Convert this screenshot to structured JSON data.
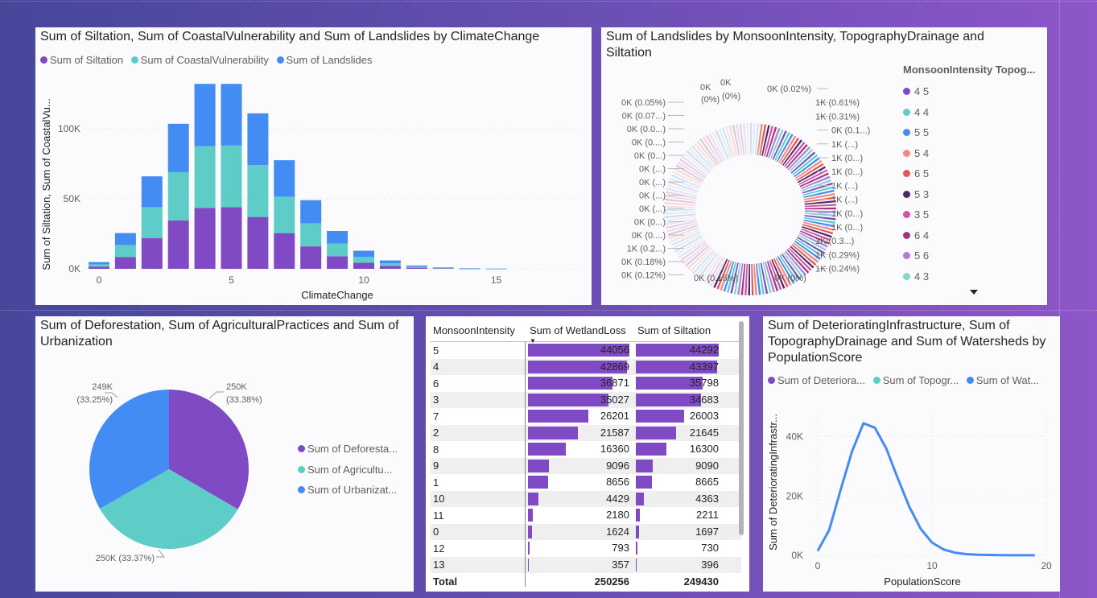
{
  "colors": {
    "purple": "#7f4ac4",
    "teal": "#5ecdc7",
    "blue": "#438cf3",
    "salmon": "#f08a7a",
    "red": "#e55756",
    "darkpurple": "#4a2b72",
    "pink": "#d4559f",
    "plum": "#9d3a7d",
    "lavender": "#b07be8",
    "mint": "#82d8c0"
  },
  "chart1": {
    "title": "Sum of Siltation, Sum of CoastalVulnerability and Sum of Landslides by ClimateChange",
    "legend": [
      "Sum of Siltation",
      "Sum of CoastalVulnerability",
      "Sum of Landslides"
    ],
    "ylabel": "Sum of Siltation, Sum of CoastalVu...",
    "xlabel": "ClimateChange",
    "yticks": [
      "0K",
      "50K",
      "100K"
    ],
    "xticks": [
      "0",
      "5",
      "10",
      "15"
    ]
  },
  "chart2": {
    "title": "Sum of Landslides by MonsoonIntensity, TopographyDrainage and Siltation",
    "legend_title": "MonsoonIntensity Topog...",
    "legend": [
      "4 5",
      "4 4",
      "5 5",
      "5 4",
      "6 5",
      "5 3",
      "3 5",
      "6 4",
      "5 6",
      "4 3"
    ],
    "left_labels": [
      "0K (0.05%)",
      "0K (0.07...)",
      "0K (0.0...)",
      "0K (0....)",
      "0K (0...)",
      "0K (...)",
      "0K (...)",
      "0K (...)",
      "0K (...)",
      "0K (0...)",
      "0K (0....)",
      "1K (0.2...)",
      "0K (0.18%)",
      "0K (0.12%)"
    ],
    "right_labels": [
      "0K (0.02%)",
      "1K (0.61%)",
      "1K (0.31%)",
      "0K (0.1...)",
      "1K (...)",
      "1K (0...)",
      "1K (0...)",
      "1K (...)",
      "1K (...)",
      "1K (0...)",
      "1K (0...)",
      "1K (0.3...)",
      "1K (0.29%)",
      "1K (0.24%)"
    ],
    "top_labels": [
      "0K",
      "0K",
      "(0%)",
      "(0%)"
    ],
    "bottom_labels": [
      "0K (0.15%)",
      "0K (0%)"
    ]
  },
  "chart3": {
    "title": "Sum of Deforestation, Sum of AgriculturalPractices and Sum of Urbanization",
    "legend": [
      "Sum of Deforesta...",
      "Sum of Agricultu...",
      "Sum of Urbanizat..."
    ],
    "labels": [
      "250K",
      "(33.38%)",
      "249K",
      "(33.25%)",
      "250K (33.37%)"
    ]
  },
  "table": {
    "headers": [
      "MonsoonIntensity",
      "Sum of WetlandLoss",
      "Sum of Siltation"
    ],
    "rows": [
      [
        "5",
        "44056",
        "44292"
      ],
      [
        "4",
        "42869",
        "43397"
      ],
      [
        "6",
        "36871",
        "35798"
      ],
      [
        "3",
        "35027",
        "34683"
      ],
      [
        "7",
        "26201",
        "26003"
      ],
      [
        "2",
        "21587",
        "21645"
      ],
      [
        "8",
        "16360",
        "16300"
      ],
      [
        "9",
        "9096",
        "9090"
      ],
      [
        "1",
        "8656",
        "8665"
      ],
      [
        "10",
        "4429",
        "4363"
      ],
      [
        "11",
        "2180",
        "2211"
      ],
      [
        "0",
        "1624",
        "1697"
      ],
      [
        "12",
        "793",
        "730"
      ],
      [
        "13",
        "357",
        "396"
      ]
    ],
    "total": [
      "Total",
      "250256",
      "249430"
    ]
  },
  "chart5": {
    "title": "Sum of DeterioratingInfrastructure, Sum of TopographyDrainage and Sum of Watersheds by PopulationScore",
    "legend": [
      "Sum of Deteriora...",
      "Sum of Topogr...",
      "Sum of Wat..."
    ],
    "ylabel": "Sum of DeterioratingInfrastr...",
    "xlabel": "PopulationScore",
    "yticks": [
      "0K",
      "20K",
      "40K"
    ],
    "xticks": [
      "0",
      "10",
      "20"
    ]
  },
  "chart_data": [
    {
      "type": "bar",
      "stacked": true,
      "title": "Sum of Siltation, Sum of CoastalVulnerability and Sum of Landslides by ClimateChange",
      "xlabel": "ClimateChange",
      "ylabel": "Sum of Siltation, Sum of CoastalVu...",
      "categories": [
        0,
        1,
        2,
        3,
        4,
        5,
        6,
        7,
        8,
        9,
        10,
        11,
        12,
        13,
        14,
        15
      ],
      "series": [
        {
          "name": "Sum of Siltation",
          "values": [
            1600,
            8500,
            22000,
            34500,
            43500,
            44000,
            37000,
            25500,
            16000,
            9000,
            4300,
            2000,
            800,
            350,
            120,
            40
          ]
        },
        {
          "name": "Sum of CoastalVulnerability",
          "values": [
            1600,
            8500,
            22000,
            34500,
            44000,
            44000,
            37000,
            26000,
            16500,
            9000,
            4300,
            2000,
            800,
            350,
            120,
            40
          ]
        },
        {
          "name": "Sum of Landslides",
          "values": [
            1600,
            8500,
            22000,
            34500,
            44500,
            44000,
            37000,
            26000,
            16500,
            9000,
            4300,
            2000,
            800,
            350,
            120,
            40
          ]
        }
      ],
      "ylim": [
        0,
        135000
      ]
    },
    {
      "type": "pie",
      "title": "Sum of Deforestation, Sum of AgriculturalPractices and Sum of Urbanization",
      "categories": [
        "Sum of Deforesta...",
        "Sum of Agricultu...",
        "Sum of Urbanizat..."
      ],
      "values": [
        33.38,
        33.37,
        33.25
      ]
    },
    {
      "type": "line",
      "title": "Sum of DeterioratingInfrastructure, Sum of TopographyDrainage and Sum of Watersheds by PopulationScore",
      "xlabel": "PopulationScore",
      "ylabel": "Sum of DeterioratingInfrastr...",
      "x": [
        0,
        1,
        2,
        3,
        4,
        5,
        6,
        7,
        8,
        9,
        10,
        11,
        12,
        13,
        14,
        15,
        16,
        17,
        18,
        19
      ],
      "series": [
        {
          "name": "Sum of Deteriora...",
          "values": [
            1500,
            8500,
            22000,
            35000,
            44500,
            43000,
            36000,
            26000,
            16500,
            9000,
            4300,
            2000,
            900,
            400,
            200,
            120,
            80,
            50,
            30,
            20
          ]
        }
      ],
      "ylim": [
        0,
        48000
      ],
      "xlim": [
        0,
        20
      ]
    }
  ]
}
